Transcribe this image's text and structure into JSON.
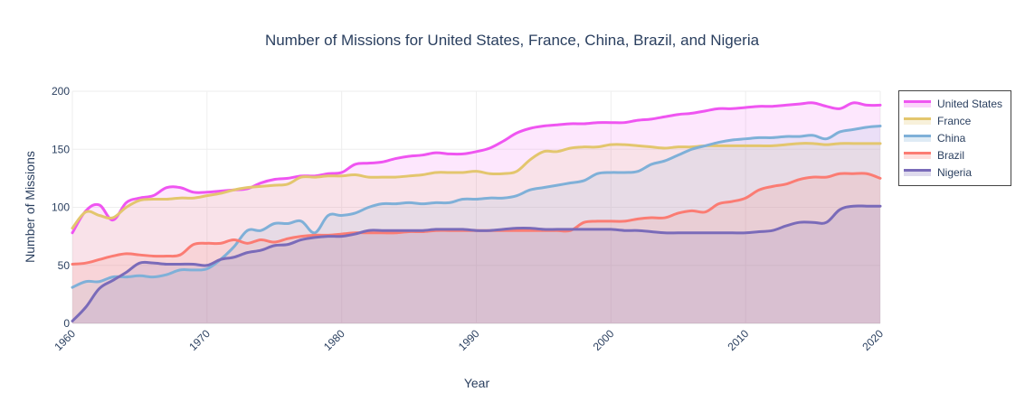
{
  "chart_data": {
    "type": "area",
    "title": "Number of Missions for United States, France, China, Brazil, and Nigeria",
    "xlabel": "Year",
    "ylabel": "Number of Missions",
    "xlim": [
      1960,
      2020
    ],
    "ylim": [
      0,
      200
    ],
    "x_ticks": [
      1960,
      1970,
      1980,
      1990,
      2000,
      2010,
      2020
    ],
    "y_ticks": [
      0,
      50,
      100,
      150,
      200
    ],
    "grid": true,
    "legend_position": "top-right",
    "series": [
      {
        "name": "United States",
        "color": "#ef55f1",
        "x": [
          1960,
          1961,
          1962,
          1963,
          1964,
          1965,
          1966,
          1967,
          1968,
          1969,
          1970,
          1971,
          1972,
          1973,
          1974,
          1975,
          1976,
          1977,
          1978,
          1979,
          1980,
          1981,
          1982,
          1983,
          1984,
          1985,
          1986,
          1987,
          1988,
          1989,
          1990,
          1991,
          1992,
          1993,
          1994,
          1995,
          1996,
          1997,
          1998,
          1999,
          2000,
          2001,
          2002,
          2003,
          2004,
          2005,
          2006,
          2007,
          2008,
          2009,
          2010,
          2011,
          2012,
          2013,
          2014,
          2015,
          2016,
          2017,
          2018,
          2019,
          2020
        ],
        "values": [
          78,
          97,
          102,
          89,
          104,
          108,
          110,
          117,
          117,
          113,
          113,
          114,
          115,
          116,
          121,
          124,
          125,
          127,
          127,
          129,
          130,
          137,
          138,
          139,
          142,
          144,
          145,
          147,
          146,
          146,
          148,
          151,
          157,
          164,
          168,
          170,
          171,
          172,
          172,
          173,
          173,
          173,
          175,
          176,
          178,
          180,
          181,
          183,
          185,
          185,
          186,
          187,
          187,
          188,
          189,
          190,
          187,
          185,
          190,
          188,
          188
        ]
      },
      {
        "name": "France",
        "color": "#e3c66e",
        "x": [
          1960,
          1961,
          1962,
          1963,
          1964,
          1965,
          1966,
          1967,
          1968,
          1969,
          1970,
          1971,
          1972,
          1973,
          1974,
          1975,
          1976,
          1977,
          1978,
          1979,
          1980,
          1981,
          1982,
          1983,
          1984,
          1985,
          1986,
          1987,
          1988,
          1989,
          1990,
          1991,
          1992,
          1993,
          1994,
          1995,
          1996,
          1997,
          1998,
          1999,
          2000,
          2001,
          2002,
          2003,
          2004,
          2005,
          2006,
          2007,
          2008,
          2009,
          2010,
          2011,
          2012,
          2013,
          2014,
          2015,
          2016,
          2017,
          2018,
          2019,
          2020
        ],
        "values": [
          82,
          96,
          93,
          91,
          100,
          106,
          107,
          107,
          108,
          108,
          110,
          112,
          115,
          117,
          118,
          119,
          120,
          126,
          126,
          127,
          127,
          128,
          126,
          126,
          126,
          127,
          128,
          130,
          130,
          130,
          131,
          129,
          129,
          131,
          141,
          148,
          148,
          151,
          152,
          152,
          154,
          154,
          153,
          152,
          151,
          152,
          152,
          153,
          153,
          153,
          153,
          153,
          153,
          154,
          155,
          155,
          154,
          155,
          155,
          155,
          155
        ]
      },
      {
        "name": "China",
        "color": "#7fb0d8",
        "x": [
          1960,
          1961,
          1962,
          1963,
          1964,
          1965,
          1966,
          1967,
          1968,
          1969,
          1970,
          1971,
          1972,
          1973,
          1974,
          1975,
          1976,
          1977,
          1978,
          1979,
          1980,
          1981,
          1982,
          1983,
          1984,
          1985,
          1986,
          1987,
          1988,
          1989,
          1990,
          1991,
          1992,
          1993,
          1994,
          1995,
          1996,
          1997,
          1998,
          1999,
          2000,
          2001,
          2002,
          2003,
          2004,
          2005,
          2006,
          2007,
          2008,
          2009,
          2010,
          2011,
          2012,
          2013,
          2014,
          2015,
          2016,
          2017,
          2018,
          2019,
          2020
        ],
        "values": [
          31,
          36,
          36,
          40,
          40,
          41,
          40,
          42,
          46,
          46,
          47,
          55,
          66,
          80,
          80,
          86,
          86,
          88,
          78,
          93,
          93,
          95,
          100,
          103,
          103,
          104,
          103,
          104,
          104,
          107,
          107,
          108,
          108,
          110,
          115,
          117,
          119,
          121,
          123,
          129,
          130,
          130,
          131,
          137,
          140,
          145,
          150,
          153,
          156,
          158,
          159,
          160,
          160,
          161,
          161,
          162,
          159,
          165,
          167,
          169,
          170
        ]
      },
      {
        "name": "Brazil",
        "color": "#fb7c73",
        "x": [
          1960,
          1961,
          1962,
          1963,
          1964,
          1965,
          1966,
          1967,
          1968,
          1969,
          1970,
          1971,
          1972,
          1973,
          1974,
          1975,
          1976,
          1977,
          1978,
          1979,
          1980,
          1981,
          1982,
          1983,
          1984,
          1985,
          1986,
          1987,
          1988,
          1989,
          1990,
          1991,
          1992,
          1993,
          1994,
          1995,
          1996,
          1997,
          1998,
          1999,
          2000,
          2001,
          2002,
          2003,
          2004,
          2005,
          2006,
          2007,
          2008,
          2009,
          2010,
          2011,
          2012,
          2013,
          2014,
          2015,
          2016,
          2017,
          2018,
          2019,
          2020
        ],
        "values": [
          51,
          52,
          55,
          58,
          60,
          59,
          58,
          58,
          59,
          68,
          69,
          69,
          72,
          69,
          72,
          70,
          73,
          75,
          76,
          76,
          77,
          78,
          78,
          78,
          78,
          79,
          79,
          80,
          80,
          80,
          80,
          80,
          80,
          80,
          80,
          80,
          80,
          80,
          87,
          88,
          88,
          88,
          90,
          91,
          91,
          95,
          97,
          96,
          103,
          105,
          108,
          115,
          118,
          120,
          124,
          126,
          126,
          129,
          129,
          129,
          125
        ]
      },
      {
        "name": "Nigeria",
        "color": "#7a6bb9",
        "x": [
          1960,
          1961,
          1962,
          1963,
          1964,
          1965,
          1966,
          1967,
          1968,
          1969,
          1970,
          1971,
          1972,
          1973,
          1974,
          1975,
          1976,
          1977,
          1978,
          1979,
          1980,
          1981,
          1982,
          1983,
          1984,
          1985,
          1986,
          1987,
          1988,
          1989,
          1990,
          1991,
          1992,
          1993,
          1994,
          1995,
          1996,
          1997,
          1998,
          1999,
          2000,
          2001,
          2002,
          2003,
          2004,
          2005,
          2006,
          2007,
          2008,
          2009,
          2010,
          2011,
          2012,
          2013,
          2014,
          2015,
          2016,
          2017,
          2018,
          2019,
          2020
        ],
        "values": [
          2,
          14,
          30,
          37,
          44,
          52,
          52,
          51,
          51,
          51,
          50,
          55,
          57,
          61,
          63,
          67,
          68,
          72,
          74,
          75,
          75,
          77,
          80,
          80,
          80,
          80,
          80,
          81,
          81,
          81,
          80,
          80,
          81,
          82,
          82,
          81,
          81,
          81,
          81,
          81,
          81,
          80,
          80,
          79,
          78,
          78,
          78,
          78,
          78,
          78,
          78,
          79,
          80,
          84,
          87,
          87,
          87,
          98,
          101,
          101,
          101
        ]
      }
    ]
  }
}
